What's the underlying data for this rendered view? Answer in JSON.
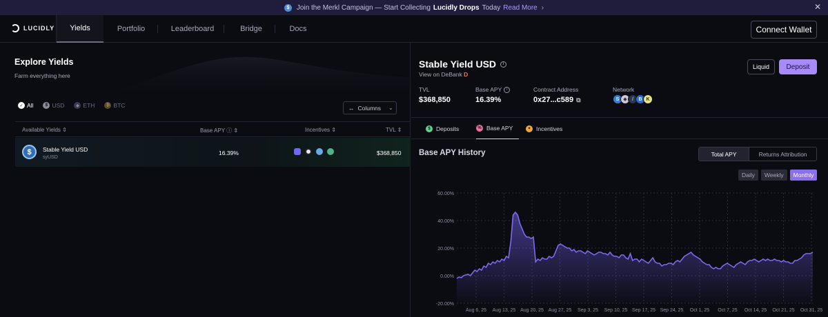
{
  "banner": {
    "text": "Join the Merkl Campaign — Start Collecting",
    "highlight": "Lucidly Drops",
    "suffix": "Today",
    "link": "Read More"
  },
  "nav": {
    "logo": "LUCIDLY",
    "items": [
      "Yields",
      "Portfolio",
      "Leaderboard",
      "Bridge",
      "Docs"
    ],
    "active": "Yields",
    "connect": "Connect Wallet"
  },
  "explore": {
    "title": "Explore Yields",
    "subtitle": "Farm everything here",
    "filters": [
      "All",
      "USD",
      "ETH",
      "BTC"
    ],
    "columns_button": "Columns",
    "headers": {
      "yields": "Available Yields",
      "apy": "Base APY",
      "incentives": "Incentives",
      "tvl": "TVL"
    },
    "rows": [
      {
        "name": "Stable Yield USD",
        "symbol": "syUSD",
        "apy": "16.39%",
        "tvl": "$368,850"
      }
    ]
  },
  "detail": {
    "title": "Stable Yield USD",
    "debank": "View on DeBank",
    "liquid": "Liquid",
    "deposit": "Deposit",
    "stats": {
      "tvl_label": "TVL",
      "tvl": "$368,850",
      "apy_label": "Base APY",
      "apy": "16.39%",
      "contract_label": "Contract Address",
      "contract": "0x27...c589",
      "network_label": "Network"
    },
    "tabs": [
      "Deposits",
      "Base APY",
      "Incentives"
    ],
    "active_tab": "Base APY",
    "history_title": "Base APY History",
    "toggle": [
      "Total APY",
      "Returns Attribution"
    ],
    "periods": [
      "Daily",
      "Weekly",
      "Monthly"
    ],
    "active_period": "Monthly"
  },
  "colors": {
    "accent": "#a78bfa",
    "line": "#7c6cf0",
    "bg": "#0b0c12"
  },
  "chart_data": {
    "type": "area",
    "title": "Base APY History",
    "ylim": [
      -20,
      60
    ],
    "y_ticks": [
      "60.00%",
      "40.00%",
      "20.00%",
      "0.00%",
      "-20.00%"
    ],
    "x_ticks": [
      "Aug 6, 25",
      "Aug 13, 25",
      "Aug 20, 25",
      "Aug 27, 25",
      "Sep 3, 25",
      "Sep 10, 25",
      "Sep 17, 25",
      "Sep 24, 25",
      "Oct 1, 25",
      "Oct 7, 25",
      "Oct 14, 25",
      "Oct 21, 25",
      "Oct 31, 25"
    ],
    "values": [
      -2,
      -1,
      -1.5,
      0,
      0.5,
      1,
      0,
      2,
      4,
      3,
      5,
      4,
      7,
      6,
      9,
      8,
      10,
      9,
      11,
      10,
      12,
      11,
      14,
      13,
      25,
      44,
      46,
      44,
      38,
      34,
      30,
      28,
      28,
      27,
      28,
      10,
      12,
      11,
      13,
      12,
      12,
      14,
      13,
      14,
      18,
      22,
      23,
      22,
      21,
      20,
      20,
      18,
      19,
      17,
      18,
      18,
      17,
      16,
      18,
      17,
      16,
      15,
      16,
      17,
      17,
      16,
      16,
      15,
      17,
      15,
      14,
      14,
      13,
      15,
      15,
      13,
      12,
      16,
      11,
      12,
      12,
      10,
      12,
      11,
      10,
      9,
      11,
      13,
      10,
      9,
      9,
      7,
      8,
      8,
      9,
      9,
      8,
      10,
      11,
      10,
      12,
      14,
      15,
      16,
      17,
      15,
      14,
      13,
      12,
      10,
      9,
      8,
      8,
      6,
      5,
      6,
      5,
      5,
      7,
      8,
      9,
      8,
      7,
      6,
      8,
      9,
      10,
      9,
      8,
      10,
      11,
      11,
      12,
      11,
      10,
      11,
      12,
      11,
      12,
      11,
      11,
      12,
      11,
      11,
      10,
      11,
      10,
      10,
      9,
      9,
      11,
      11,
      12,
      13,
      15,
      16,
      16,
      16,
      17
    ]
  }
}
